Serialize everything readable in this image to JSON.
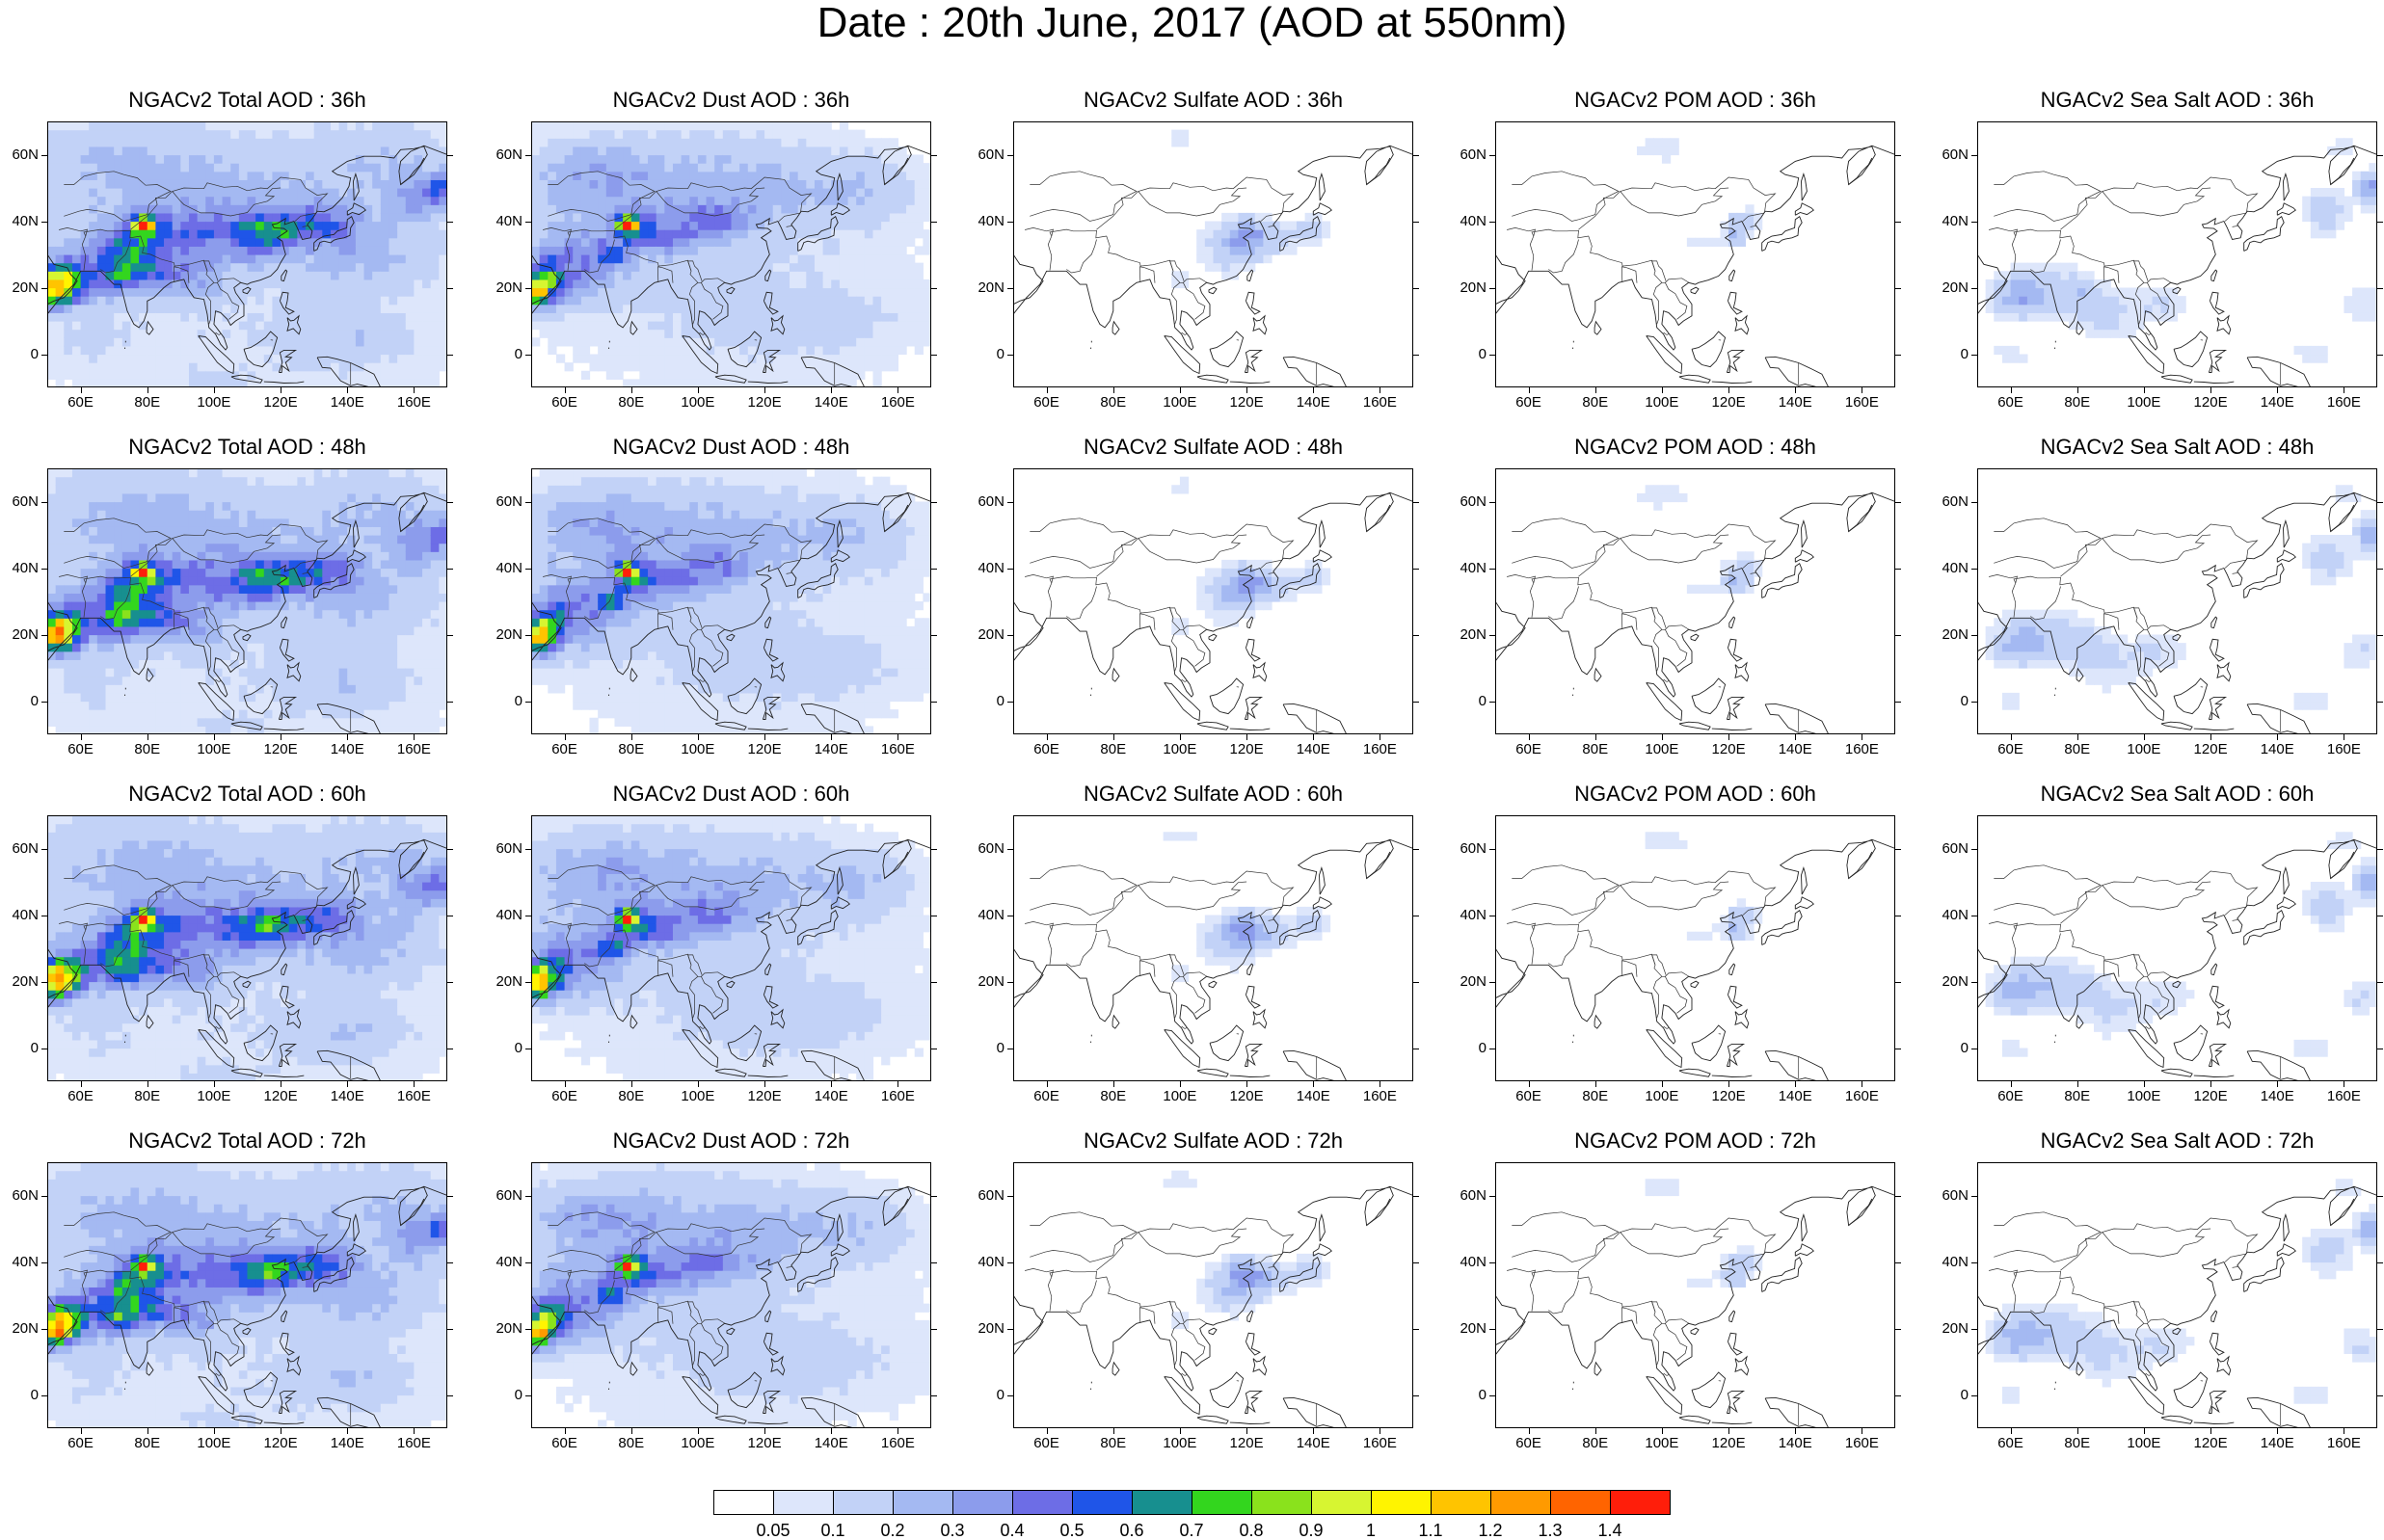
{
  "title": "Date : 20th June, 2017 (AOD at 550nm)",
  "lat_labels": [
    "60N",
    "40N",
    "20N",
    "0"
  ],
  "lon_labels": [
    "60E",
    "80E",
    "100E",
    "120E",
    "140E",
    "160E"
  ],
  "panels": [
    {
      "title": "NGACv2 Total AOD : 36h",
      "species": "total",
      "hour": 36
    },
    {
      "title": "NGACv2 Dust AOD : 36h",
      "species": "dust",
      "hour": 36
    },
    {
      "title": "NGACv2 Sulfate AOD : 36h",
      "species": "sulfate",
      "hour": 36
    },
    {
      "title": "NGACv2 POM AOD : 36h",
      "species": "pom",
      "hour": 36
    },
    {
      "title": "NGACv2 Sea Salt AOD : 36h",
      "species": "seasalt",
      "hour": 36
    },
    {
      "title": "NGACv2 Total AOD : 48h",
      "species": "total",
      "hour": 48
    },
    {
      "title": "NGACv2 Dust AOD : 48h",
      "species": "dust",
      "hour": 48
    },
    {
      "title": "NGACv2 Sulfate AOD : 48h",
      "species": "sulfate",
      "hour": 48
    },
    {
      "title": "NGACv2 POM AOD : 48h",
      "species": "pom",
      "hour": 48
    },
    {
      "title": "NGACv2 Sea Salt AOD : 48h",
      "species": "seasalt",
      "hour": 48
    },
    {
      "title": "NGACv2 Total AOD : 60h",
      "species": "total",
      "hour": 60
    },
    {
      "title": "NGACv2 Dust AOD : 60h",
      "species": "dust",
      "hour": 60
    },
    {
      "title": "NGACv2 Sulfate AOD : 60h",
      "species": "sulfate",
      "hour": 60
    },
    {
      "title": "NGACv2 POM AOD : 60h",
      "species": "pom",
      "hour": 60
    },
    {
      "title": "NGACv2 Sea Salt AOD : 60h",
      "species": "seasalt",
      "hour": 60
    },
    {
      "title": "NGACv2 Total AOD : 72h",
      "species": "total",
      "hour": 72
    },
    {
      "title": "NGACv2 Dust AOD : 72h",
      "species": "dust",
      "hour": 72
    },
    {
      "title": "NGACv2 Sulfate AOD : 72h",
      "species": "sulfate",
      "hour": 72
    },
    {
      "title": "NGACv2 POM AOD : 72h",
      "species": "pom",
      "hour": 72
    },
    {
      "title": "NGACv2 Sea Salt  AOD : 72h",
      "species": "seasalt",
      "hour": 72
    }
  ],
  "colorbar": {
    "labels": [
      "0.05",
      "0.1",
      "0.2",
      "0.3",
      "0.4",
      "0.5",
      "0.6",
      "0.7",
      "0.8",
      "0.9",
      "1",
      "1.1",
      "1.2",
      "1.3",
      "1.4"
    ],
    "colors": [
      "#ffffff",
      "#dde6fb",
      "#c2d2f7",
      "#a4b9f2",
      "#8c9cec",
      "#6d6de6",
      "#1f55e8",
      "#178f8f",
      "#33d61e",
      "#8ae21c",
      "#d7f531",
      "#fff400",
      "#ffc400",
      "#ff9a00",
      "#ff6400",
      "#ff1e0a"
    ]
  },
  "map_extent": {
    "lon_min": 50,
    "lon_max": 170,
    "lat_min": -10,
    "lat_max": 70
  }
}
